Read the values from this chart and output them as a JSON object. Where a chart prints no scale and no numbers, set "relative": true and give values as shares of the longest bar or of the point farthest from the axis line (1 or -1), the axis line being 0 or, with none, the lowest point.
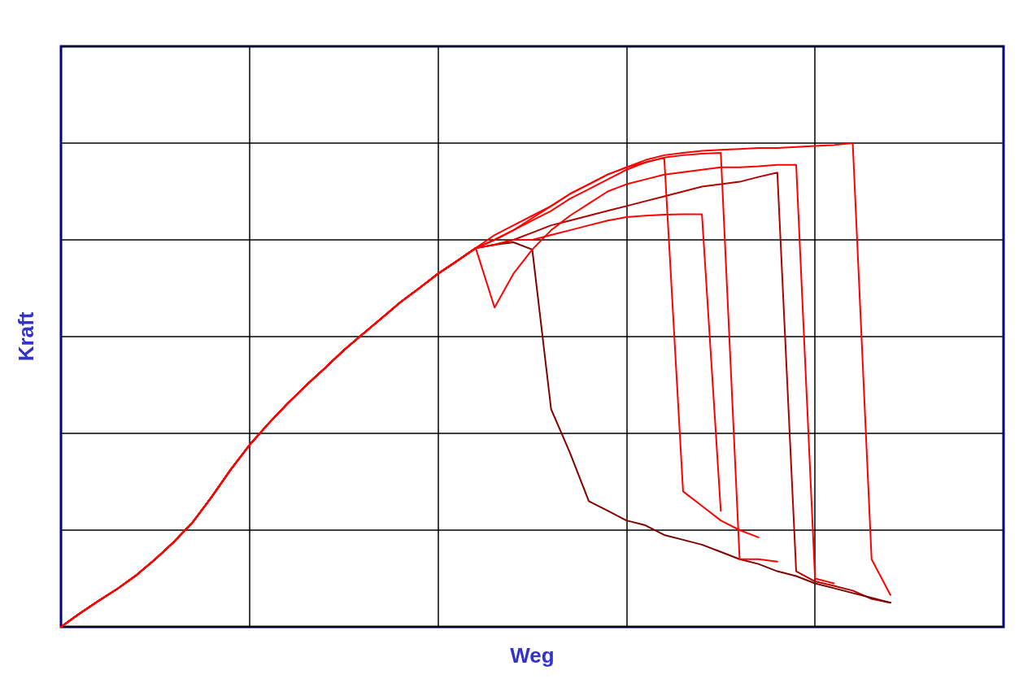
{
  "chart_data": {
    "type": "line",
    "relative": true,
    "xlabel": "Weg",
    "ylabel": "Kraft",
    "grid": true,
    "marker": "none",
    "line_style": "solid",
    "categories": [
      null,
      null,
      null,
      null,
      null,
      null,
      null,
      null,
      null,
      null,
      null,
      null,
      null,
      null,
      null,
      null,
      null,
      null,
      null,
      null,
      null,
      null,
      null,
      null,
      null,
      null,
      null,
      null,
      null,
      null,
      null,
      null,
      null,
      null,
      null,
      null,
      null,
      null,
      null,
      null,
      null,
      null,
      null,
      null,
      null,
      null,
      null,
      null,
      null,
      null,
      null
    ],
    "series": [
      {
        "color": "#ff0000",
        "values": [
          0,
          0.028,
          0.054,
          0.079,
          0.107,
          0.14,
          0.176,
          0.217,
          0.269,
          0.325,
          0.376,
          0.42,
          0.461,
          0.499,
          0.535,
          0.572,
          0.605,
          0.638,
          0.671,
          0.7,
          0.73,
          0.756,
          0.783,
          0.81,
          0.83,
          0.85,
          0.87,
          0.895,
          0.915,
          0.935,
          0.95,
          0.965,
          0.975,
          0.98,
          0.984,
          0.986,
          0.988,
          0.99,
          0.99,
          0.992,
          0.994,
          0.996,
          1,
          0.14,
          0.066,
          null,
          null,
          null,
          null,
          null,
          null
        ]
      },
      {
        "color": "#b00000",
        "values": [
          0,
          0.028,
          0.054,
          0.079,
          0.107,
          0.14,
          0.176,
          0.217,
          0.269,
          0.325,
          0.376,
          0.42,
          0.461,
          0.499,
          0.535,
          0.572,
          0.605,
          0.638,
          0.671,
          0.7,
          0.73,
          0.756,
          0.783,
          0.79,
          0.8,
          0.815,
          0.83,
          0.84,
          0.85,
          0.86,
          0.87,
          0.88,
          0.89,
          0.9,
          0.91,
          0.915,
          0.92,
          0.93,
          0.939,
          0.115,
          0.094,
          0.085,
          0.075,
          0.058,
          0.05,
          null,
          null,
          null,
          null,
          null,
          null
        ]
      },
      {
        "color": "#800000",
        "values": [
          0,
          0.028,
          0.054,
          0.079,
          0.107,
          0.14,
          0.176,
          0.217,
          0.269,
          0.325,
          0.376,
          0.42,
          0.461,
          0.499,
          0.535,
          0.572,
          0.605,
          0.638,
          0.671,
          0.7,
          0.73,
          0.756,
          0.783,
          0.79,
          0.795,
          0.78,
          0.45,
          0.36,
          0.26,
          0.24,
          0.22,
          0.21,
          0.19,
          0.18,
          0.17,
          0.155,
          0.14,
          0.13,
          0.115,
          0.105,
          0.09,
          0.08,
          0.07,
          0.06,
          0.05,
          null,
          null,
          null,
          null,
          null,
          null
        ]
      },
      {
        "color": "#ff0000",
        "values": [
          0,
          0.028,
          0.054,
          0.079,
          0.107,
          0.14,
          0.176,
          0.217,
          0.269,
          0.325,
          0.376,
          0.42,
          0.461,
          0.499,
          0.535,
          0.572,
          0.605,
          0.638,
          0.671,
          0.7,
          0.73,
          0.756,
          0.783,
          0.79,
          0.8,
          0.8,
          0.81,
          0.82,
          0.83,
          0.84,
          0.847,
          0.85,
          0.852,
          0.853,
          0.853,
          0.24,
          null,
          null,
          null,
          null,
          null,
          null,
          null,
          null,
          null,
          null,
          null,
          null,
          null,
          null,
          null
        ]
      },
      {
        "color": "#ff0000",
        "values": [
          0,
          0.028,
          0.054,
          0.079,
          0.107,
          0.14,
          0.176,
          0.217,
          0.269,
          0.325,
          0.376,
          0.42,
          0.461,
          0.499,
          0.535,
          0.572,
          0.605,
          0.638,
          0.671,
          0.7,
          0.73,
          0.756,
          0.783,
          0.8,
          0.82,
          0.84,
          0.86,
          0.885,
          0.905,
          0.925,
          0.945,
          0.96,
          0.97,
          0.28,
          0.25,
          0.22,
          0.2,
          0.185,
          null,
          null,
          null,
          null,
          null,
          null,
          null,
          null,
          null,
          null,
          null,
          null,
          null
        ]
      },
      {
        "color": "#ff0000",
        "values": [
          0,
          0.028,
          0.054,
          0.079,
          0.107,
          0.14,
          0.176,
          0.217,
          0.269,
          0.325,
          0.376,
          0.42,
          0.461,
          0.499,
          0.535,
          0.572,
          0.605,
          0.638,
          0.671,
          0.7,
          0.73,
          0.756,
          0.783,
          0.8,
          0.82,
          0.845,
          0.87,
          0.895,
          0.915,
          0.935,
          0.95,
          0.96,
          0.97,
          0.975,
          0.978,
          0.98,
          0.14,
          0.14,
          0.135,
          null,
          null,
          null,
          null,
          null,
          null,
          null,
          null,
          null,
          null,
          null,
          null
        ]
      },
      {
        "color": "#ff0000",
        "values": [
          0,
          0.028,
          0.054,
          0.079,
          0.107,
          0.14,
          0.176,
          0.217,
          0.269,
          0.325,
          0.376,
          0.42,
          0.461,
          0.499,
          0.535,
          0.572,
          0.605,
          0.638,
          0.671,
          0.7,
          0.73,
          0.756,
          0.783,
          0.66,
          0.73,
          0.78,
          0.82,
          0.85,
          0.875,
          0.9,
          0.915,
          0.925,
          0.935,
          0.94,
          0.945,
          0.95,
          0.95,
          0.952,
          0.955,
          0.955,
          0.1,
          0.09,
          null,
          null,
          null,
          null,
          null,
          null,
          null,
          null,
          null
        ]
      }
    ]
  }
}
